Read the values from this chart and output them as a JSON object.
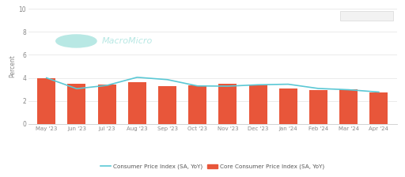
{
  "categories": [
    "May '23",
    "Jun '23",
    "Jul '23",
    "Aug '23",
    "Sep '23",
    "Oct '23",
    "Nov '23",
    "Dec '23",
    "Jan '24",
    "Feb '24",
    "Mar '24",
    "Apr '24"
  ],
  "bar_values": [
    3.97,
    3.47,
    3.45,
    3.63,
    3.26,
    3.35,
    3.52,
    3.44,
    3.11,
    2.93,
    2.98,
    2.7
  ],
  "line_values": [
    4.0,
    3.06,
    3.35,
    4.05,
    3.85,
    3.3,
    3.28,
    3.4,
    3.45,
    3.08,
    2.97,
    2.77
  ],
  "bar_color": "#E8563A",
  "line_color": "#5BC8D5",
  "ylabel": "Percent",
  "ylim": [
    0,
    10
  ],
  "yticks": [
    0,
    2,
    4,
    6,
    8,
    10
  ],
  "background_color": "#ffffff",
  "grid_color": "#e8e8e8",
  "legend_line_label": "Consumer Price Index (SA, YoY)",
  "legend_bar_label": "Core Consumer Price Index (SA, YoY)",
  "watermark_text": "MacroMicro",
  "watermark_color": "#b8e8e4",
  "top_right_box_color": "#f2f2f2",
  "top_right_box_edge": "#dddddd"
}
